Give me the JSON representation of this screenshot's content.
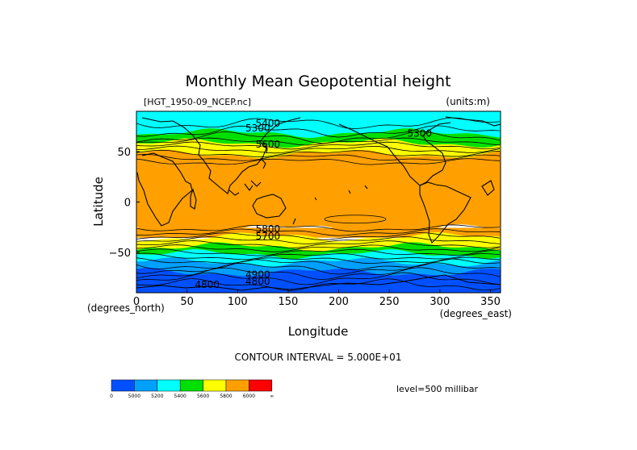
{
  "chart_data": {
    "type": "heatmap",
    "title": "Monthly Mean Geopotential height",
    "dataset_label": "[HGT_1950-09_NCEP.nc]",
    "units_label": "(units:m)",
    "xlabel": "Longitude",
    "ylabel": "Latitude",
    "x_units_label": "(degrees_east)",
    "y_units_label": "(degrees_north)",
    "xlim": [
      0,
      360
    ],
    "ylim": [
      -90,
      90
    ],
    "x_ticks": [
      0,
      50,
      100,
      150,
      200,
      250,
      300,
      350
    ],
    "y_ticks": [
      50,
      0,
      -50
    ],
    "contour_interval_text": "CONTOUR INTERVAL = 5.000E+01",
    "level_text": "level=500 millibar",
    "contour_labels": [
      "5300",
      "5400",
      "5600",
      "5800",
      "4900",
      "4800",
      "5700"
    ],
    "colorbar": {
      "tick_labels": [
        "0",
        "5000",
        "5200",
        "5400",
        "5600",
        "5800",
        "6000",
        "∞"
      ],
      "colors": [
        "#0050ff",
        "#00a0ff",
        "#00ffff",
        "#00e000",
        "#ffff00",
        "#ffa000",
        "#ff0000"
      ]
    },
    "latitude_profile": [
      {
        "lat": 90,
        "band": 2
      },
      {
        "lat": 75,
        "band": 2
      },
      {
        "lat": 68,
        "band": 3
      },
      {
        "lat": 58,
        "band": 4
      },
      {
        "lat": 47,
        "band": 5
      },
      {
        "lat": 40,
        "band": 5
      },
      {
        "lat": -26,
        "band": 5
      },
      {
        "lat": -35,
        "band": 4
      },
      {
        "lat": -45,
        "band": 3
      },
      {
        "lat": -52,
        "band": 2
      },
      {
        "lat": -60,
        "band": 1
      },
      {
        "lat": -70,
        "band": 0
      },
      {
        "lat": -90,
        "band": 0
      }
    ]
  }
}
